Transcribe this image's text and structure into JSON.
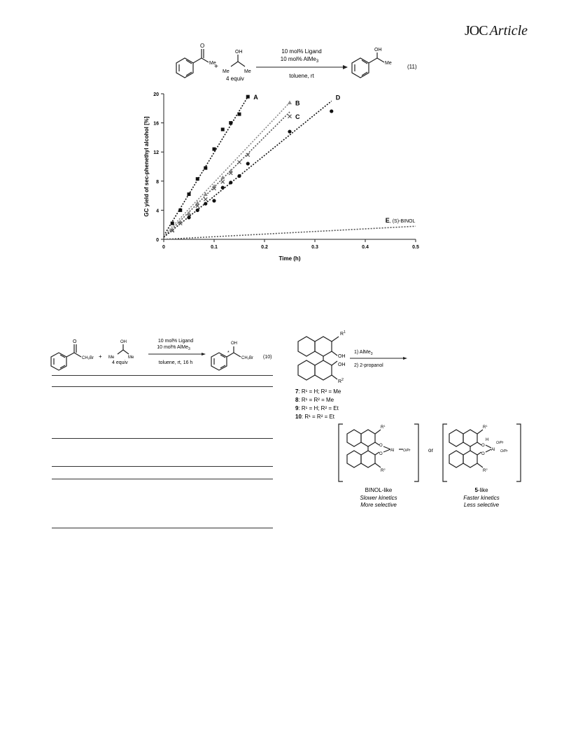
{
  "header": {
    "journal": "JOC",
    "section": "Article"
  },
  "scheme11": {
    "reagent_top": "10 mol% Ligand",
    "reagent_bottom": "10 mol% AlMe",
    "reagent_bottom_sub": "3",
    "conditions": "toluene, rt",
    "equiv": "4 equiv",
    "number": "(11)",
    "plus": "+",
    "me": "Me",
    "oh": "OH"
  },
  "chart_data": {
    "type": "scatter",
    "xlabel": "Time (h)",
    "ylabel": "GC yield of sec-phenethyl alcohol [%]",
    "xlim": [
      0,
      0.5
    ],
    "ylim": [
      0,
      20
    ],
    "x_ticks": [
      "0",
      "0.1",
      "0.2",
      "0.3",
      "0.4",
      "0.5"
    ],
    "y_ticks": [
      "0",
      "4",
      "8",
      "12",
      "16",
      "20"
    ],
    "grid": false,
    "series": [
      {
        "name": "A",
        "marker": "square",
        "color": "#111111",
        "fit": [
          [
            0,
            0.5
          ],
          [
            0.167,
            19.6
          ]
        ],
        "x": [
          0.017,
          0.033,
          0.05,
          0.067,
          0.083,
          0.1,
          0.117,
          0.133,
          0.15,
          0.167
        ],
        "y": [
          2.2,
          4.0,
          6.2,
          8.3,
          9.8,
          12.4,
          15.1,
          16.0,
          17.2,
          19.6
        ]
      },
      {
        "name": "B",
        "marker": "triangle",
        "color": "#888888",
        "fit": [
          [
            0,
            0.5
          ],
          [
            0.25,
            18.8
          ]
        ],
        "x": [
          0.017,
          0.033,
          0.05,
          0.067,
          0.083,
          0.1,
          0.117,
          0.133,
          0.25
        ],
        "y": [
          1.3,
          2.4,
          3.6,
          5.0,
          6.2,
          7.3,
          8.5,
          9.4,
          18.8
        ]
      },
      {
        "name": "C",
        "marker": "cross",
        "color": "#555555",
        "fit": [
          [
            0,
            0.3
          ],
          [
            0.25,
            17.5
          ]
        ],
        "x": [
          0.017,
          0.033,
          0.05,
          0.067,
          0.083,
          0.1,
          0.117,
          0.133,
          0.15,
          0.167,
          0.25
        ],
        "y": [
          1.2,
          2.2,
          3.2,
          4.6,
          5.5,
          7.0,
          7.9,
          9.1,
          10.6,
          11.6,
          16.9
        ]
      },
      {
        "name": "D",
        "marker": "circle",
        "color": "#111111",
        "fit": [
          [
            0,
            0.3
          ],
          [
            0.333,
            19.0
          ]
        ],
        "x": [
          0.05,
          0.067,
          0.083,
          0.1,
          0.117,
          0.133,
          0.15,
          0.167,
          0.25,
          0.333
        ],
        "y": [
          3.0,
          4.0,
          4.9,
          5.3,
          7.1,
          7.8,
          8.7,
          10.4,
          14.8,
          17.6
        ]
      },
      {
        "name": "E",
        "label_extra": ", (S)-BINOL",
        "marker": "none",
        "color": "#555555",
        "fit": [
          [
            0,
            0
          ],
          [
            0.5,
            1.8
          ]
        ],
        "x": [],
        "y": []
      }
    ]
  },
  "scheme10": {
    "reagent_top": "10 mol% Ligand",
    "reagent_bottom": "10 mol% AlMe",
    "reagent_bottom_sub": "3",
    "conditions": "toluene, rt, 16 h",
    "equiv": "4 equiv",
    "number": "(10)",
    "plus": "+",
    "ch2br": "CH₂Br",
    "oh": "OH",
    "me": "Me",
    "star": "*"
  },
  "ligand_scheme": {
    "step1": "1) AlMe",
    "step1_sub": "3",
    "step2": "2) 2-propanol",
    "oh": "OH",
    "r1": "R",
    "r2": "R",
    "sup1": "1",
    "sup2": "2",
    "compounds": [
      {
        "num": "7",
        "rest": ":  R¹ = H; R² = Me"
      },
      {
        "num": "8",
        "rest": ":  R¹ = R² = Me"
      },
      {
        "num": "9",
        "rest": ":  R¹ = H; R² = Et"
      },
      {
        "num": "10",
        "rest": ":  R¹ = R² = Et"
      }
    ],
    "or": "or",
    "left_complex": {
      "label": "BINOL-like",
      "line1": "Slower kinetics",
      "line2": "More selective",
      "al": "Al",
      "o": "O",
      "oipr": "O/Pr"
    },
    "right_complex": {
      "label_num": "5",
      "label_rest": "-like",
      "line1": "Faster kinetics",
      "line2": "Less selective",
      "al": "Al",
      "o": "O",
      "h": "H",
      "oipr": "O/Pr"
    }
  }
}
